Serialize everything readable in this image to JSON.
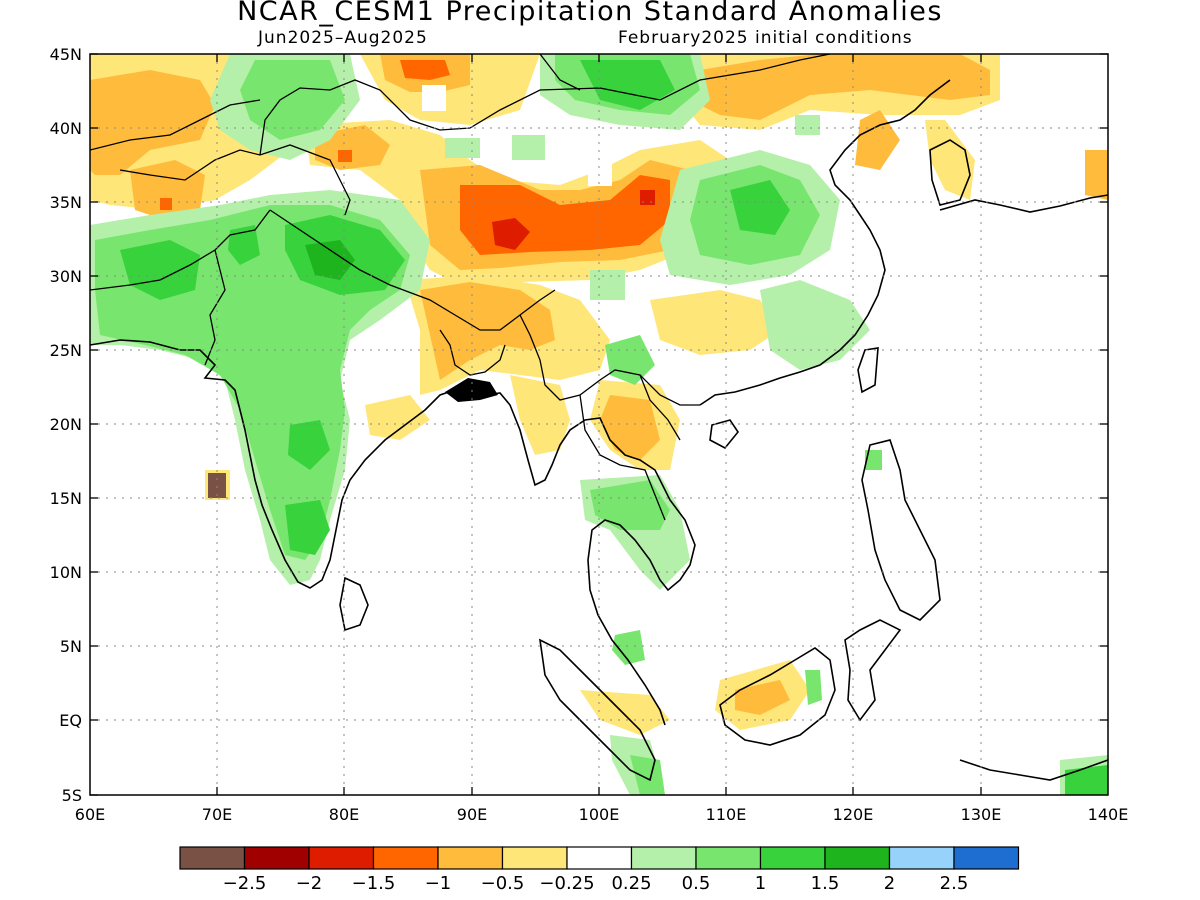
{
  "title": "NCAR_CESM1 Precipitation Standard Anomalies",
  "subtitle_left": "Jun2025–Aug2025",
  "subtitle_right": "February2025 initial conditions",
  "lat_labels": [
    "45N",
    "40N",
    "35N",
    "30N",
    "25N",
    "20N",
    "15N",
    "10N",
    "5N",
    "EQ",
    "5S"
  ],
  "lon_labels": [
    "60E",
    "70E",
    "80E",
    "90E",
    "100E",
    "110E",
    "120E",
    "130E",
    "140E"
  ],
  "colorbar": {
    "colors": [
      "#7a5245",
      "#a00000",
      "#dd1c00",
      "#ff6600",
      "#ffbb3c",
      "#ffe678",
      "#ffffff",
      "#b4f0a9",
      "#78e66e",
      "#37d23c",
      "#1eb41e",
      "#96d2fa",
      "#1e6ed2"
    ],
    "labels": [
      "−2.5",
      "−2",
      "−1.5",
      "−1",
      "−0.5",
      "−0.25",
      "0.25",
      "0.5",
      "1",
      "1.5",
      "2",
      "2.5"
    ]
  },
  "map": {
    "lon_range": [
      60,
      140
    ],
    "lat_range": [
      -5,
      45
    ],
    "anomaly_regions": [
      {
        "level": "-1",
        "color": "#ffbb3c",
        "lon": 67,
        "lat": 36
      },
      {
        "level": "-1",
        "color": "#ffbb3c",
        "lon": 92,
        "lat": 35
      },
      {
        "level": "-1.5",
        "color": "#ff6600",
        "lon": 95,
        "lat": 33
      },
      {
        "level": "-2",
        "color": "#dd1c00",
        "lon": 94,
        "lat": 32
      },
      {
        "level": "1",
        "color": "#78e66e",
        "lon": 78,
        "lat": 28
      },
      {
        "level": "1.5",
        "color": "#37d23c",
        "lon": 81,
        "lat": 31
      },
      {
        "level": "1.5",
        "color": "#37d23c",
        "lon": 112,
        "lat": 34
      },
      {
        "level": "1",
        "color": "#78e66e",
        "lon": 103,
        "lat": 44
      },
      {
        "level": "-1",
        "color": "#ffbb3c",
        "lon": 101,
        "lat": 19
      }
    ]
  }
}
